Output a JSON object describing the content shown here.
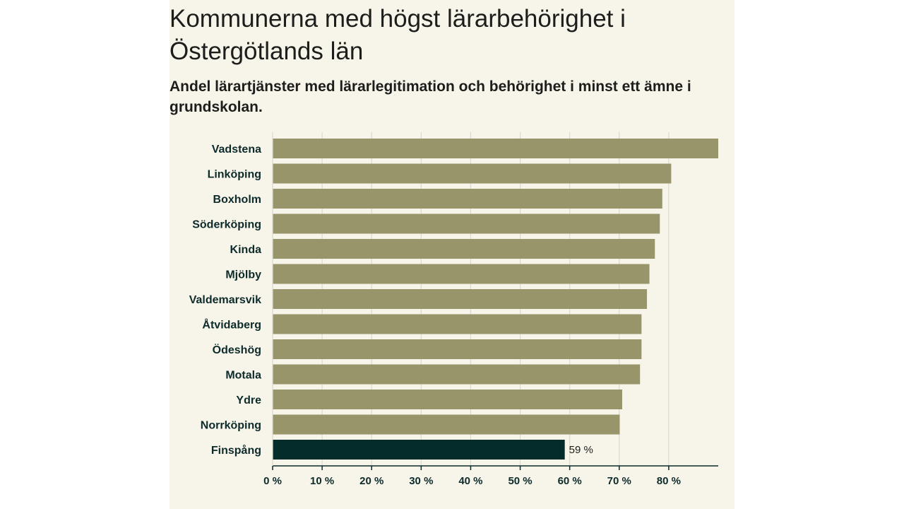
{
  "title": "Kommunerna med högst lärarbehörighet i Östergötlands län",
  "subtitle": "Andel lärartjänster med lärarlegitimation och behörighet i minst ett ämne i grundskolan.",
  "colors": {
    "bar": "#99956b",
    "highlight": "#042c2a",
    "panel": "#f7f4e9",
    "grid": "#dcdad0",
    "axis": "#0d2b2b"
  },
  "chart_data": {
    "type": "bar",
    "orientation": "horizontal",
    "title": "Kommunerna med högst lärarbehörighet i Östergötlands län",
    "subtitle": "Andel lärartjänster med lärarlegitimation och behörighet i minst ett ämne i grundskolan.",
    "xlabel": "",
    "ylabel": "",
    "xlim": [
      0,
      90
    ],
    "grid": true,
    "categories": [
      "Vadstena",
      "Linköping",
      "Boxholm",
      "Söderköping",
      "Kinda",
      "Mjölby",
      "Valdemarsvik",
      "Åtvidaberg",
      "Ödeshög",
      "Motala",
      "Ydre",
      "Norrköping",
      "Finspång"
    ],
    "values": [
      90,
      80.5,
      78.7,
      78.2,
      77.2,
      76.1,
      75.6,
      74.5,
      74.5,
      74.2,
      70.6,
      70.1,
      59
    ],
    "highlight": "Finspång",
    "data_labels": [
      {
        "category": "Finspång",
        "text": "59 %"
      }
    ],
    "ticks": [
      0,
      10,
      20,
      30,
      40,
      50,
      60,
      70,
      80
    ],
    "tick_labels": [
      "0 %",
      "10 %",
      "20 %",
      "30 %",
      "40 %",
      "50 %",
      "60 %",
      "70 %",
      "80 %"
    ]
  }
}
